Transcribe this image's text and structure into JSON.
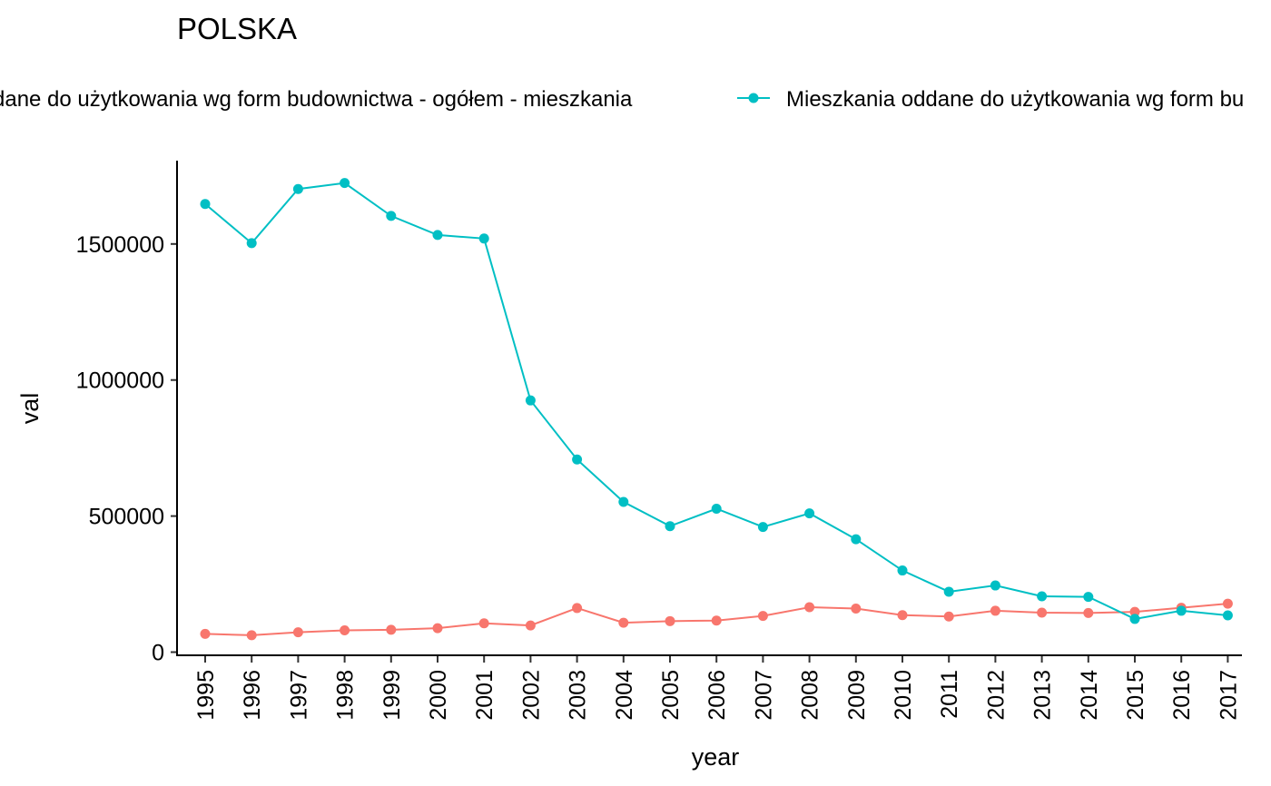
{
  "chart_data": {
    "type": "line",
    "title": "POLSKA",
    "xlabel": "year",
    "ylabel": "val",
    "ylim": [
      0,
      1800000
    ],
    "yticks": [
      0,
      500000,
      1000000,
      1500000
    ],
    "ytick_labels": [
      "0",
      "500000",
      "1000000",
      "1500000"
    ],
    "grid": false,
    "legend_position": "top",
    "categories": [
      "1995",
      "1996",
      "1997",
      "1998",
      "1999",
      "2000",
      "2001",
      "2002",
      "2003",
      "2004",
      "2005",
      "2006",
      "2007",
      "2008",
      "2009",
      "2010",
      "2011",
      "2012",
      "2013",
      "2014",
      "2015",
      "2016",
      "2017"
    ],
    "series": [
      {
        "name": "dane do użytkowania wg form budownictwa - ogółem - mieszkania",
        "color": "#F8766D",
        "values": [
          67000,
          62000,
          73000,
          80000,
          82000,
          88000,
          106000,
          98000,
          162000,
          108000,
          114000,
          116000,
          133000,
          165000,
          160000,
          136000,
          131000,
          152000,
          145000,
          144000,
          148000,
          163000,
          178000
        ]
      },
      {
        "name": "Mieszkania oddane do użytkowania wg form bu",
        "color": "#00BFC4",
        "values": [
          1647000,
          1503000,
          1702000,
          1724000,
          1603000,
          1533000,
          1520000,
          925000,
          708000,
          552000,
          463000,
          527000,
          460000,
          510000,
          415000,
          300000,
          222000,
          245000,
          205000,
          203000,
          122000,
          152000,
          135000
        ]
      }
    ]
  }
}
